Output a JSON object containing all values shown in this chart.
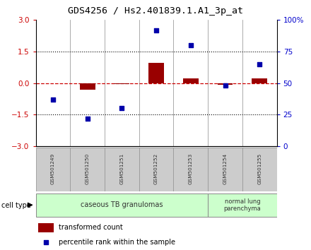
{
  "title": "GDS4256 / Hs2.401839.1.A1_3p_at",
  "samples": [
    "GSM501249",
    "GSM501250",
    "GSM501251",
    "GSM501252",
    "GSM501253",
    "GSM501254",
    "GSM501255"
  ],
  "transformed_count": [
    0.0,
    -0.32,
    -0.05,
    0.95,
    0.22,
    -0.08,
    0.22
  ],
  "percentile_rank": [
    37,
    22,
    30,
    92,
    80,
    48,
    65
  ],
  "left_ylim": [
    -3,
    3
  ],
  "left_yticks": [
    -3,
    -1.5,
    0,
    1.5,
    3
  ],
  "right_ylim": [
    0,
    100
  ],
  "right_yticks": [
    0,
    25,
    50,
    75,
    100
  ],
  "right_yticklabels": [
    "0",
    "25",
    "50",
    "75",
    "100%"
  ],
  "bar_color": "#990000",
  "dot_color": "#0000AA",
  "dashed_line_color": "#CC0000",
  "hline_color": "#000000",
  "group1_label": "caseous TB granulomas",
  "group1_color": "#CCFFCC",
  "group2_label": "normal lung\nparenchyma",
  "group2_color": "#CCFFCC",
  "legend_bar_label": "transformed count",
  "legend_dot_label": "percentile rank within the sample",
  "cell_type_label": "cell type",
  "bg_color": "#FFFFFF",
  "spine_color": "#000000",
  "left_tick_color": "#CC0000",
  "right_tick_color": "#0000CC",
  "sample_box_color": "#CCCCCC",
  "sample_text_color": "#333333"
}
